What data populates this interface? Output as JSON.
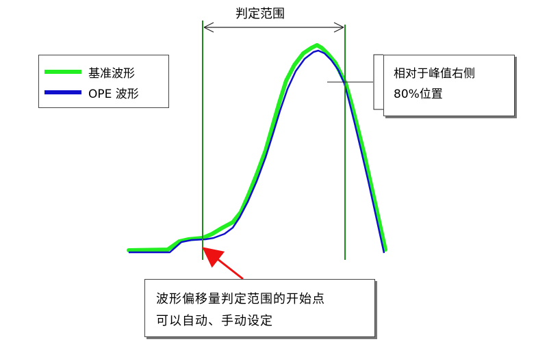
{
  "range_label": "判定范围",
  "legend": {
    "items": [
      {
        "label": "基准波形",
        "color": "#22ee22"
      },
      {
        "label": "OPE 波形",
        "color": "#1010cc"
      }
    ]
  },
  "callout": {
    "lines": [
      "相对于峰值右侧",
      "80%位置"
    ]
  },
  "note": {
    "lines": [
      "波形偏移量判定范围的开始点",
      "可以自动、手动设定"
    ]
  },
  "colors": {
    "boundary_line": "#1a8a1a",
    "arrow": "#ee1111",
    "reference_wave": "#22ee22",
    "ope_wave": "#1010cc"
  }
}
